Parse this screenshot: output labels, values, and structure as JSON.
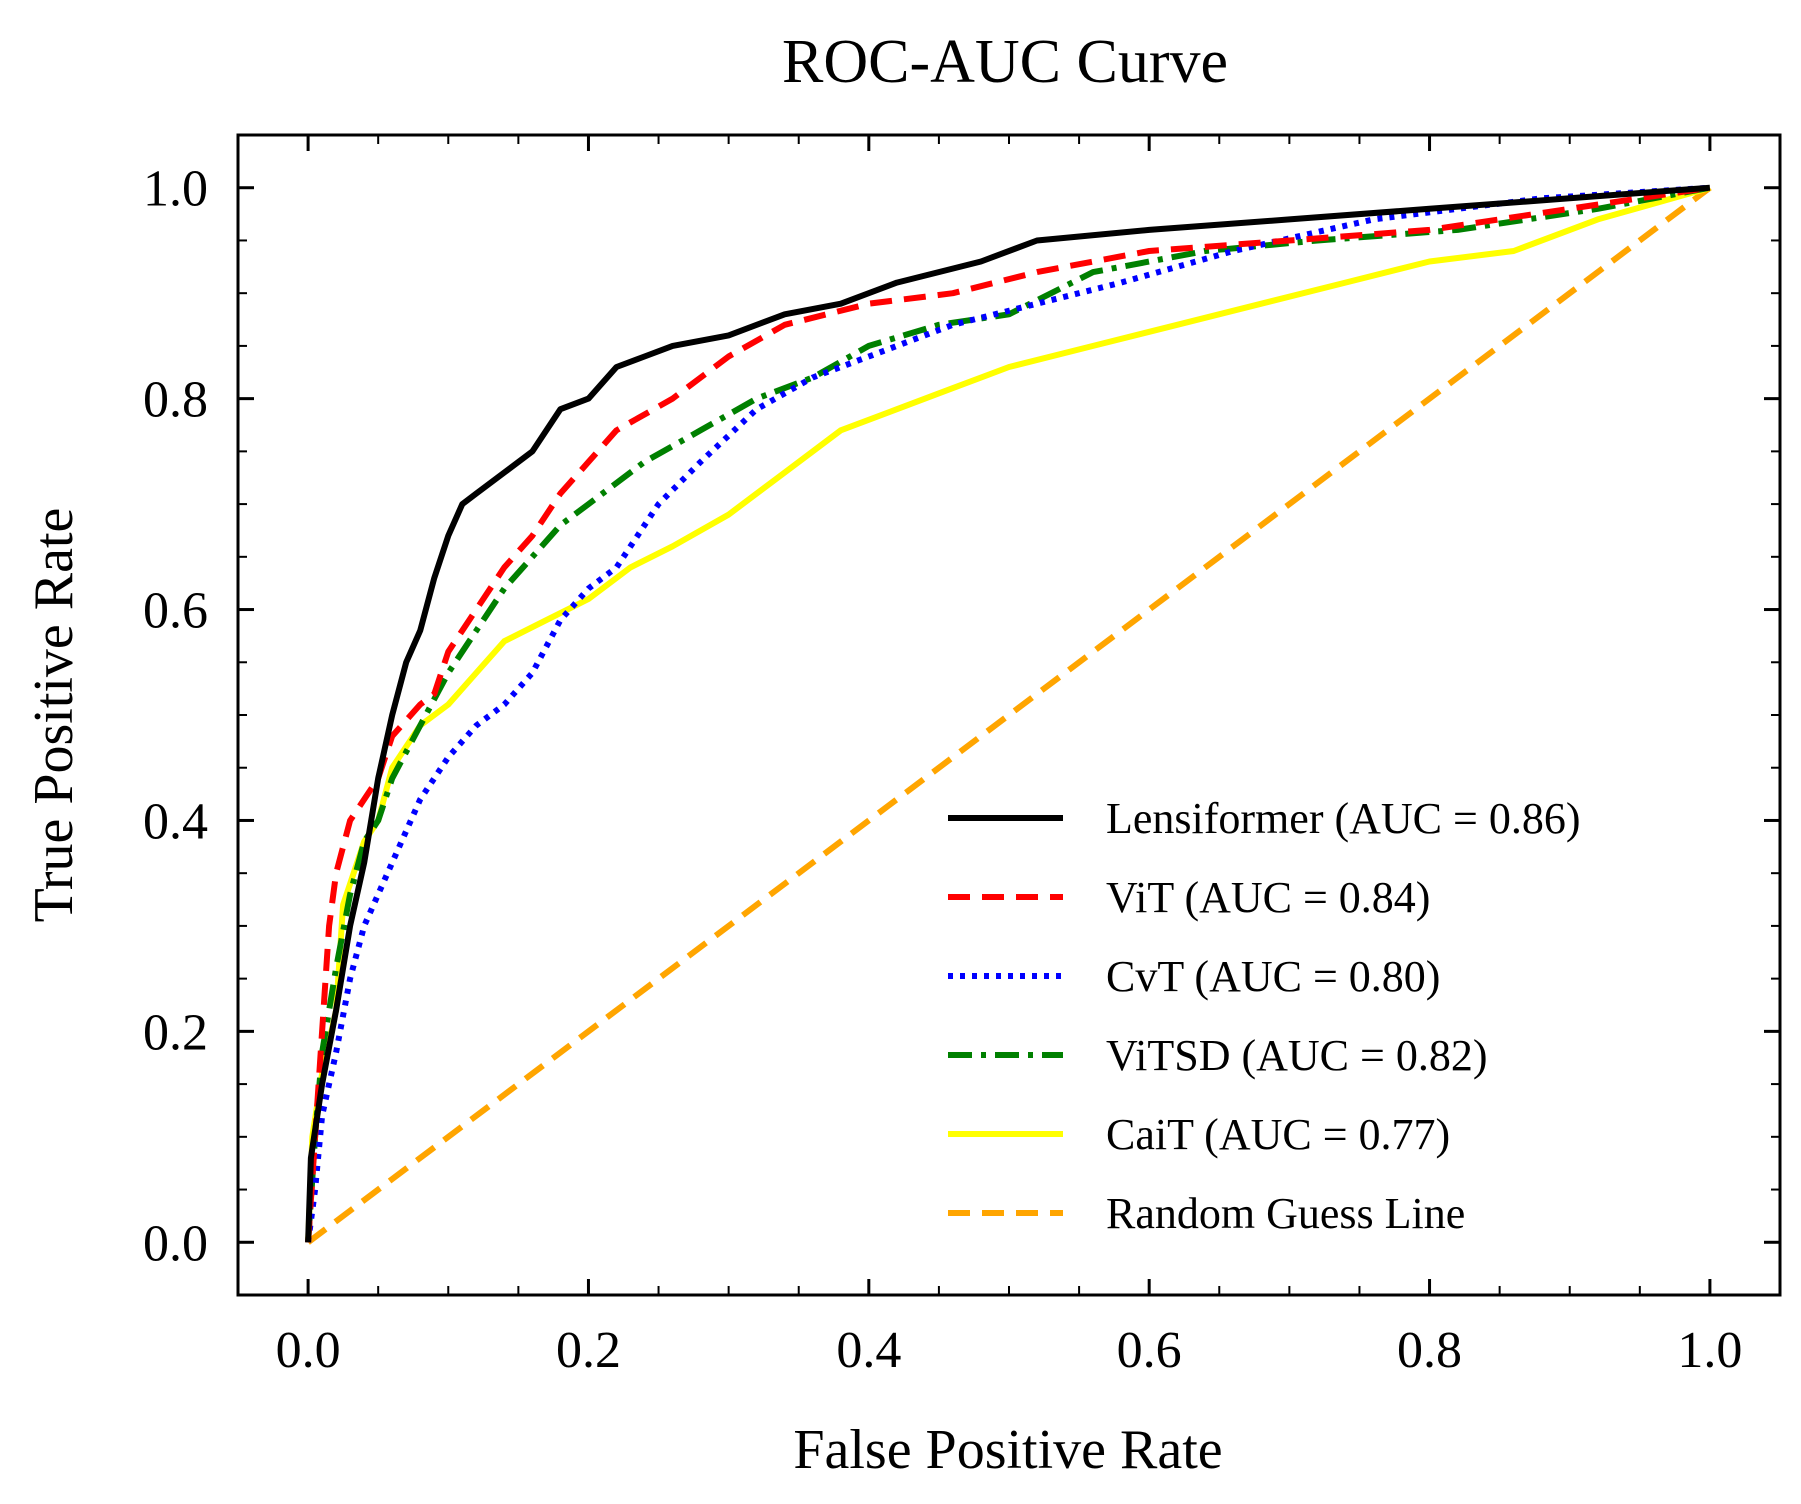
{
  "chart_data": {
    "type": "line",
    "title": "ROC-AUC Curve",
    "xlabel": "False Positive Rate",
    "ylabel": "True Positive Rate",
    "xlim": [
      -0.05,
      1.05
    ],
    "ylim": [
      -0.05,
      1.05
    ],
    "xticks": [
      0.0,
      0.2,
      0.4,
      0.6,
      0.8,
      1.0
    ],
    "yticks": [
      0.0,
      0.2,
      0.4,
      0.6,
      0.8,
      1.0
    ],
    "xtick_labels": [
      "0.0",
      "0.2",
      "0.4",
      "0.6",
      "0.8",
      "1.0"
    ],
    "ytick_labels": [
      "0.0",
      "0.2",
      "0.4",
      "0.6",
      "0.8",
      "1.0"
    ],
    "grid": false,
    "legend_position": "lower-right",
    "series": [
      {
        "name": " Lensiformer (AUC = 0.86)",
        "color": "#000000",
        "style": "solid",
        "points": [
          [
            0,
            0
          ],
          [
            0.002,
            0.08
          ],
          [
            0.01,
            0.15
          ],
          [
            0.02,
            0.22
          ],
          [
            0.03,
            0.3
          ],
          [
            0.04,
            0.36
          ],
          [
            0.05,
            0.44
          ],
          [
            0.06,
            0.5
          ],
          [
            0.07,
            0.55
          ],
          [
            0.08,
            0.58
          ],
          [
            0.09,
            0.63
          ],
          [
            0.1,
            0.67
          ],
          [
            0.11,
            0.7
          ],
          [
            0.12,
            0.71
          ],
          [
            0.14,
            0.73
          ],
          [
            0.16,
            0.75
          ],
          [
            0.18,
            0.79
          ],
          [
            0.2,
            0.8
          ],
          [
            0.22,
            0.83
          ],
          [
            0.24,
            0.84
          ],
          [
            0.26,
            0.85
          ],
          [
            0.3,
            0.86
          ],
          [
            0.34,
            0.88
          ],
          [
            0.38,
            0.89
          ],
          [
            0.42,
            0.91
          ],
          [
            0.48,
            0.93
          ],
          [
            0.52,
            0.95
          ],
          [
            0.6,
            0.96
          ],
          [
            0.7,
            0.97
          ],
          [
            0.8,
            0.98
          ],
          [
            0.9,
            0.99
          ],
          [
            1.0,
            1.0
          ]
        ]
      },
      {
        "name": "ViT (AUC = 0.84)",
        "color": "#ff0000",
        "style": "dashed",
        "points": [
          [
            0,
            0
          ],
          [
            0.005,
            0.1
          ],
          [
            0.01,
            0.2
          ],
          [
            0.015,
            0.3
          ],
          [
            0.02,
            0.35
          ],
          [
            0.03,
            0.4
          ],
          [
            0.05,
            0.44
          ],
          [
            0.06,
            0.48
          ],
          [
            0.08,
            0.51
          ],
          [
            0.09,
            0.52
          ],
          [
            0.1,
            0.56
          ],
          [
            0.12,
            0.6
          ],
          [
            0.14,
            0.64
          ],
          [
            0.16,
            0.67
          ],
          [
            0.18,
            0.71
          ],
          [
            0.2,
            0.74
          ],
          [
            0.22,
            0.77
          ],
          [
            0.26,
            0.8
          ],
          [
            0.3,
            0.84
          ],
          [
            0.34,
            0.87
          ],
          [
            0.4,
            0.89
          ],
          [
            0.46,
            0.9
          ],
          [
            0.52,
            0.92
          ],
          [
            0.6,
            0.94
          ],
          [
            0.7,
            0.95
          ],
          [
            0.8,
            0.96
          ],
          [
            0.9,
            0.98
          ],
          [
            1.0,
            1.0
          ]
        ]
      },
      {
        "name": "CvT (AUC = 0.80)",
        "color": "#0000ff",
        "style": "dotted",
        "points": [
          [
            0,
            0
          ],
          [
            0.005,
            0.05
          ],
          [
            0.01,
            0.12
          ],
          [
            0.02,
            0.18
          ],
          [
            0.03,
            0.25
          ],
          [
            0.04,
            0.3
          ],
          [
            0.06,
            0.36
          ],
          [
            0.08,
            0.42
          ],
          [
            0.1,
            0.46
          ],
          [
            0.12,
            0.49
          ],
          [
            0.14,
            0.51
          ],
          [
            0.16,
            0.54
          ],
          [
            0.18,
            0.59
          ],
          [
            0.2,
            0.62
          ],
          [
            0.22,
            0.64
          ],
          [
            0.25,
            0.7
          ],
          [
            0.28,
            0.74
          ],
          [
            0.32,
            0.79
          ],
          [
            0.36,
            0.82
          ],
          [
            0.4,
            0.84
          ],
          [
            0.46,
            0.87
          ],
          [
            0.52,
            0.89
          ],
          [
            0.58,
            0.91
          ],
          [
            0.66,
            0.94
          ],
          [
            0.76,
            0.97
          ],
          [
            0.88,
            0.99
          ],
          [
            1.0,
            1.0
          ]
        ]
      },
      {
        "name": "ViTSD (AUC = 0.82)",
        "color": "#008000",
        "style": "dashdot",
        "points": [
          [
            0,
            0
          ],
          [
            0.005,
            0.1
          ],
          [
            0.01,
            0.18
          ],
          [
            0.02,
            0.26
          ],
          [
            0.03,
            0.33
          ],
          [
            0.04,
            0.38
          ],
          [
            0.05,
            0.4
          ],
          [
            0.06,
            0.44
          ],
          [
            0.08,
            0.49
          ],
          [
            0.1,
            0.54
          ],
          [
            0.12,
            0.58
          ],
          [
            0.14,
            0.62
          ],
          [
            0.16,
            0.65
          ],
          [
            0.18,
            0.68
          ],
          [
            0.2,
            0.7
          ],
          [
            0.24,
            0.74
          ],
          [
            0.28,
            0.77
          ],
          [
            0.32,
            0.8
          ],
          [
            0.36,
            0.82
          ],
          [
            0.4,
            0.85
          ],
          [
            0.45,
            0.87
          ],
          [
            0.5,
            0.88
          ],
          [
            0.56,
            0.92
          ],
          [
            0.64,
            0.94
          ],
          [
            0.72,
            0.95
          ],
          [
            0.82,
            0.96
          ],
          [
            0.92,
            0.98
          ],
          [
            1.0,
            1.0
          ]
        ]
      },
      {
        "name": "CaiT (AUC = 0.77)",
        "color": "#ffff00",
        "style": "solid",
        "points": [
          [
            0,
            0
          ],
          [
            0.003,
            0.1
          ],
          [
            0.01,
            0.16
          ],
          [
            0.02,
            0.22
          ],
          [
            0.025,
            0.32
          ],
          [
            0.04,
            0.38
          ],
          [
            0.05,
            0.4
          ],
          [
            0.06,
            0.45
          ],
          [
            0.08,
            0.49
          ],
          [
            0.1,
            0.51
          ],
          [
            0.12,
            0.54
          ],
          [
            0.14,
            0.57
          ],
          [
            0.17,
            0.59
          ],
          [
            0.2,
            0.61
          ],
          [
            0.23,
            0.64
          ],
          [
            0.26,
            0.66
          ],
          [
            0.3,
            0.69
          ],
          [
            0.34,
            0.73
          ],
          [
            0.38,
            0.77
          ],
          [
            0.42,
            0.79
          ],
          [
            0.46,
            0.81
          ],
          [
            0.5,
            0.83
          ],
          [
            0.56,
            0.85
          ],
          [
            0.62,
            0.87
          ],
          [
            0.68,
            0.89
          ],
          [
            0.74,
            0.91
          ],
          [
            0.8,
            0.93
          ],
          [
            0.86,
            0.94
          ],
          [
            0.92,
            0.97
          ],
          [
            1.0,
            1.0
          ]
        ]
      },
      {
        "name": "Random Guess Line",
        "color": "#ffa500",
        "style": "dashed",
        "points": [
          [
            0,
            0
          ],
          [
            1,
            1
          ]
        ]
      }
    ]
  }
}
